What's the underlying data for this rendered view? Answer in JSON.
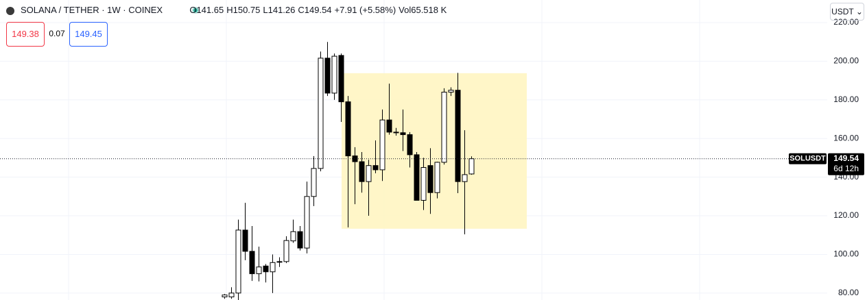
{
  "chart_data": {
    "type": "candlestick",
    "symbol_title": "SOLANA / TETHER · 1W · COINEX",
    "legend": [
      {
        "key": "O",
        "value": "141.65"
      },
      {
        "key": "H",
        "value": "150.75"
      },
      {
        "key": "L",
        "value": "141.26"
      },
      {
        "key": "C",
        "value": "149.54"
      },
      {
        "key": "",
        "value": "+7.91 (+5.58%)"
      },
      {
        "key": "Vol",
        "value": "65.518 K"
      }
    ],
    "sell_price": "149.38",
    "spread": "0.07",
    "buy_price": "149.45",
    "currency": "USDT",
    "price_tag": {
      "symbol": "SOLUSDT",
      "price": 149.54,
      "price_label": "149.54",
      "countdown": "6d 12h"
    },
    "box": {
      "top": 193.8,
      "bottom": 113.3
    },
    "open": [
      78,
      78,
      80,
      112.6,
      101.6,
      90,
      94,
      91,
      96,
      96.3,
      107,
      111.8,
      103.3,
      130,
      144.5,
      201.6,
      183.5,
      203,
      179,
      151,
      148,
      137.7,
      146,
      143.8,
      169.6,
      163.3,
      163,
      162,
      151.6,
      128,
      146,
      132,
      147.7,
      184,
      185,
      137.7,
      141.65
    ],
    "high": [
      79.5,
      83,
      118,
      126.7,
      114.7,
      104,
      95,
      100,
      98.5,
      109.4,
      118,
      114.7,
      137.7,
      150.9,
      205,
      210,
      204,
      204,
      182,
      155.5,
      153,
      149,
      159,
      175,
      188.4,
      165.5,
      175,
      163.3,
      153,
      150,
      155,
      148,
      186,
      186.5,
      194,
      164.3,
      150.75
    ],
    "low": [
      77,
      77,
      76,
      97,
      86.3,
      86,
      85.5,
      80,
      93.5,
      95.5,
      106,
      102,
      100.5,
      125,
      143,
      182,
      180,
      168.6,
      114,
      126,
      132,
      120,
      142,
      138,
      162,
      161.5,
      153.5,
      145,
      128,
      123,
      121,
      129,
      146.5,
      182,
      131.7,
      110.4,
      141.26
    ],
    "close": [
      79,
      80,
      112.6,
      101.6,
      90,
      93.5,
      91,
      95.8,
      96.3,
      107.2,
      111.8,
      103.3,
      130,
      144.5,
      201.6,
      183.5,
      202.6,
      179,
      151,
      148,
      137.7,
      146,
      143.8,
      169.6,
      163.3,
      163,
      162,
      151.6,
      128,
      145,
      132,
      147.7,
      184,
      185,
      137.7,
      141.3,
      149.54
    ],
    "up_color": "#ffffff",
    "down_color": "#000000",
    "ylim": [
      76.4,
      231.7
    ],
    "yticks": [
      {
        "value": 80,
        "label": "80.00"
      },
      {
        "value": 100,
        "label": "100.00"
      },
      {
        "value": 120,
        "label": "120.00"
      },
      {
        "value": 140,
        "label": "140.00"
      },
      {
        "value": 160,
        "label": "160.00"
      },
      {
        "value": 180,
        "label": "180.00"
      },
      {
        "value": 200,
        "label": "200.00"
      },
      {
        "value": 220,
        "label": "220.00"
      }
    ],
    "grid": true
  }
}
